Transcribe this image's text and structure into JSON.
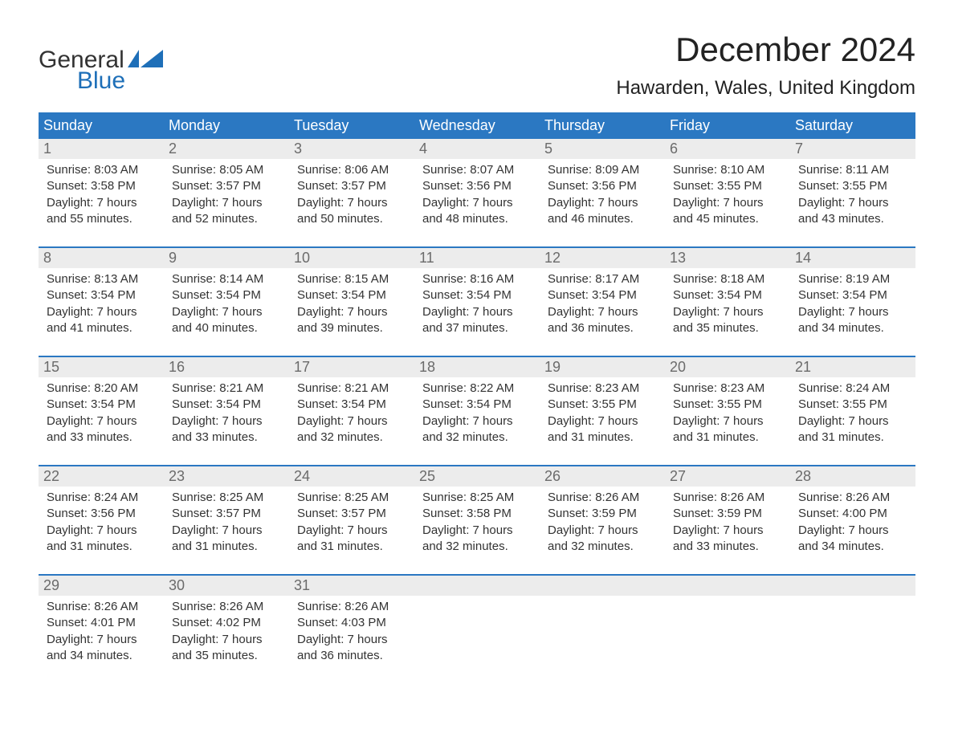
{
  "brand": {
    "word1": "General",
    "word2": "Blue",
    "flag_color": "#1e6fb8"
  },
  "title": "December 2024",
  "location": "Hawarden, Wales, United Kingdom",
  "colors": {
    "header_bg": "#2b78c2",
    "header_text": "#ffffff",
    "daynum_bg": "#ececec",
    "daynum_text": "#6b6b6b",
    "body_text": "#333333",
    "week_border": "#2b78c2",
    "page_bg": "#ffffff"
  },
  "fonts": {
    "title_size_pt": 32,
    "location_size_pt": 18,
    "dayheader_size_pt": 14,
    "daynum_size_pt": 14,
    "cell_size_pt": 11
  },
  "day_names": [
    "Sunday",
    "Monday",
    "Tuesday",
    "Wednesday",
    "Thursday",
    "Friday",
    "Saturday"
  ],
  "labels": {
    "sunrise": "Sunrise:",
    "sunset": "Sunset:",
    "daylight": "Daylight:"
  },
  "weeks": [
    [
      {
        "n": "1",
        "sunrise": "8:03 AM",
        "sunset": "3:58 PM",
        "day_l1": "7 hours",
        "day_l2": "and 55 minutes."
      },
      {
        "n": "2",
        "sunrise": "8:05 AM",
        "sunset": "3:57 PM",
        "day_l1": "7 hours",
        "day_l2": "and 52 minutes."
      },
      {
        "n": "3",
        "sunrise": "8:06 AM",
        "sunset": "3:57 PM",
        "day_l1": "7 hours",
        "day_l2": "and 50 minutes."
      },
      {
        "n": "4",
        "sunrise": "8:07 AM",
        "sunset": "3:56 PM",
        "day_l1": "7 hours",
        "day_l2": "and 48 minutes."
      },
      {
        "n": "5",
        "sunrise": "8:09 AM",
        "sunset": "3:56 PM",
        "day_l1": "7 hours",
        "day_l2": "and 46 minutes."
      },
      {
        "n": "6",
        "sunrise": "8:10 AM",
        "sunset": "3:55 PM",
        "day_l1": "7 hours",
        "day_l2": "and 45 minutes."
      },
      {
        "n": "7",
        "sunrise": "8:11 AM",
        "sunset": "3:55 PM",
        "day_l1": "7 hours",
        "day_l2": "and 43 minutes."
      }
    ],
    [
      {
        "n": "8",
        "sunrise": "8:13 AM",
        "sunset": "3:54 PM",
        "day_l1": "7 hours",
        "day_l2": "and 41 minutes."
      },
      {
        "n": "9",
        "sunrise": "8:14 AM",
        "sunset": "3:54 PM",
        "day_l1": "7 hours",
        "day_l2": "and 40 minutes."
      },
      {
        "n": "10",
        "sunrise": "8:15 AM",
        "sunset": "3:54 PM",
        "day_l1": "7 hours",
        "day_l2": "and 39 minutes."
      },
      {
        "n": "11",
        "sunrise": "8:16 AM",
        "sunset": "3:54 PM",
        "day_l1": "7 hours",
        "day_l2": "and 37 minutes."
      },
      {
        "n": "12",
        "sunrise": "8:17 AM",
        "sunset": "3:54 PM",
        "day_l1": "7 hours",
        "day_l2": "and 36 minutes."
      },
      {
        "n": "13",
        "sunrise": "8:18 AM",
        "sunset": "3:54 PM",
        "day_l1": "7 hours",
        "day_l2": "and 35 minutes."
      },
      {
        "n": "14",
        "sunrise": "8:19 AM",
        "sunset": "3:54 PM",
        "day_l1": "7 hours",
        "day_l2": "and 34 minutes."
      }
    ],
    [
      {
        "n": "15",
        "sunrise": "8:20 AM",
        "sunset": "3:54 PM",
        "day_l1": "7 hours",
        "day_l2": "and 33 minutes."
      },
      {
        "n": "16",
        "sunrise": "8:21 AM",
        "sunset": "3:54 PM",
        "day_l1": "7 hours",
        "day_l2": "and 33 minutes."
      },
      {
        "n": "17",
        "sunrise": "8:21 AM",
        "sunset": "3:54 PM",
        "day_l1": "7 hours",
        "day_l2": "and 32 minutes."
      },
      {
        "n": "18",
        "sunrise": "8:22 AM",
        "sunset": "3:54 PM",
        "day_l1": "7 hours",
        "day_l2": "and 32 minutes."
      },
      {
        "n": "19",
        "sunrise": "8:23 AM",
        "sunset": "3:55 PM",
        "day_l1": "7 hours",
        "day_l2": "and 31 minutes."
      },
      {
        "n": "20",
        "sunrise": "8:23 AM",
        "sunset": "3:55 PM",
        "day_l1": "7 hours",
        "day_l2": "and 31 minutes."
      },
      {
        "n": "21",
        "sunrise": "8:24 AM",
        "sunset": "3:55 PM",
        "day_l1": "7 hours",
        "day_l2": "and 31 minutes."
      }
    ],
    [
      {
        "n": "22",
        "sunrise": "8:24 AM",
        "sunset": "3:56 PM",
        "day_l1": "7 hours",
        "day_l2": "and 31 minutes."
      },
      {
        "n": "23",
        "sunrise": "8:25 AM",
        "sunset": "3:57 PM",
        "day_l1": "7 hours",
        "day_l2": "and 31 minutes."
      },
      {
        "n": "24",
        "sunrise": "8:25 AM",
        "sunset": "3:57 PM",
        "day_l1": "7 hours",
        "day_l2": "and 31 minutes."
      },
      {
        "n": "25",
        "sunrise": "8:25 AM",
        "sunset": "3:58 PM",
        "day_l1": "7 hours",
        "day_l2": "and 32 minutes."
      },
      {
        "n": "26",
        "sunrise": "8:26 AM",
        "sunset": "3:59 PM",
        "day_l1": "7 hours",
        "day_l2": "and 32 minutes."
      },
      {
        "n": "27",
        "sunrise": "8:26 AM",
        "sunset": "3:59 PM",
        "day_l1": "7 hours",
        "day_l2": "and 33 minutes."
      },
      {
        "n": "28",
        "sunrise": "8:26 AM",
        "sunset": "4:00 PM",
        "day_l1": "7 hours",
        "day_l2": "and 34 minutes."
      }
    ],
    [
      {
        "n": "29",
        "sunrise": "8:26 AM",
        "sunset": "4:01 PM",
        "day_l1": "7 hours",
        "day_l2": "and 34 minutes."
      },
      {
        "n": "30",
        "sunrise": "8:26 AM",
        "sunset": "4:02 PM",
        "day_l1": "7 hours",
        "day_l2": "and 35 minutes."
      },
      {
        "n": "31",
        "sunrise": "8:26 AM",
        "sunset": "4:03 PM",
        "day_l1": "7 hours",
        "day_l2": "and 36 minutes."
      },
      null,
      null,
      null,
      null
    ]
  ]
}
